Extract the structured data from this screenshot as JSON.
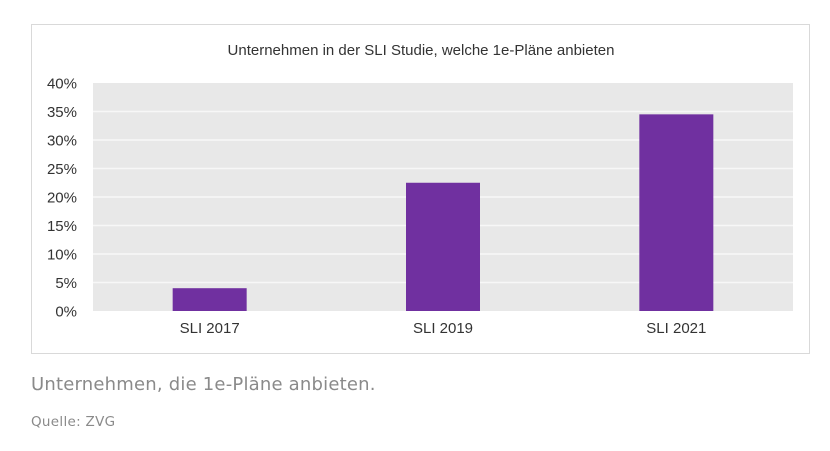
{
  "chart_data": {
    "type": "bar",
    "title": "Unternehmen in der SLI Studie, welche 1e-Pläne anbieten",
    "xlabel": "",
    "ylabel": "",
    "categories": [
      "SLI 2017",
      "SLI 2019",
      "SLI 2021"
    ],
    "values": [
      4,
      22.5,
      34.5
    ],
    "value_unit": "%",
    "ylim": [
      0,
      40
    ],
    "yticks": [
      "0%",
      "5%",
      "10%",
      "15%",
      "20%",
      "25%",
      "30%",
      "35%",
      "40%"
    ],
    "grid": true,
    "legend": "none",
    "colors": {
      "bar": "#7030a0",
      "plot_background": "#e8e8e8",
      "gridline": "#f7f7f7"
    }
  },
  "caption": "Unternehmen, die 1e-Pläne anbieten.",
  "source": "Quelle: ZVG"
}
